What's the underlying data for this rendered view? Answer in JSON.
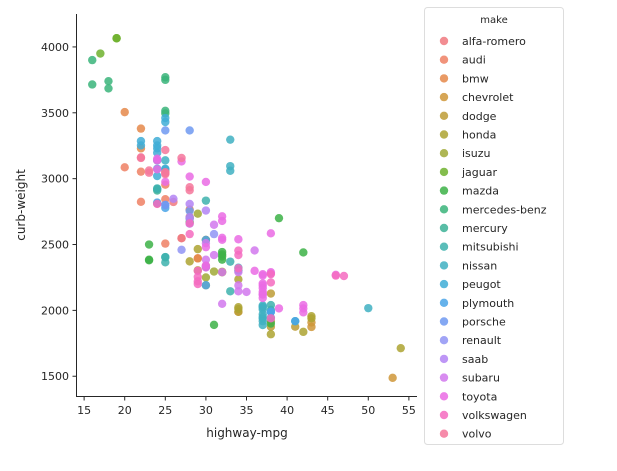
{
  "chart_data": {
    "type": "scatter",
    "xlabel": "highway-mpg",
    "ylabel": "curb-weight",
    "xlim": [
      14,
      56
    ],
    "ylim": [
      1350,
      4250
    ],
    "xticks": [
      15,
      20,
      25,
      30,
      35,
      40,
      45,
      50,
      55
    ],
    "yticks": [
      1500,
      2000,
      2500,
      3000,
      3500,
      4000
    ],
    "grid": false,
    "legend": {
      "title": "make",
      "placement": "right-outside"
    },
    "series": [
      {
        "name": "alfa-romero",
        "color": "#f0797f",
        "points": [
          [
            27,
            2548
          ],
          [
            27,
            2548
          ],
          [
            26,
            2823
          ]
        ]
      },
      {
        "name": "audi",
        "color": "#ee8064",
        "points": [
          [
            30,
            2337
          ],
          [
            22,
            2824
          ],
          [
            25,
            2507
          ],
          [
            25,
            2844
          ],
          [
            25,
            2954
          ],
          [
            20,
            3086
          ],
          [
            22,
            3053
          ]
        ]
      },
      {
        "name": "bmw",
        "color": "#e5884a",
        "points": [
          [
            29,
            2395
          ],
          [
            29,
            2395
          ],
          [
            28,
            2710
          ],
          [
            28,
            2765
          ],
          [
            25,
            3055
          ],
          [
            22,
            3230
          ],
          [
            22,
            3380
          ],
          [
            20,
            3505
          ]
        ]
      },
      {
        "name": "chevrolet",
        "color": "#cf9638",
        "points": [
          [
            53,
            1488
          ],
          [
            43,
            1874
          ],
          [
            43,
            1909
          ]
        ]
      },
      {
        "name": "dodge",
        "color": "#bd9c36",
        "points": [
          [
            41,
            1876
          ],
          [
            38,
            1876
          ],
          [
            38,
            2128
          ],
          [
            30,
            2191
          ],
          [
            30,
            2535
          ],
          [
            30,
            2535
          ],
          [
            24,
            2811
          ],
          [
            38,
            1918
          ],
          [
            34,
            1989
          ],
          [
            34,
            1989
          ]
        ]
      },
      {
        "name": "honda",
        "color": "#ada331",
        "points": [
          [
            54,
            1713
          ],
          [
            38,
            1819
          ],
          [
            42,
            1837
          ],
          [
            43,
            1940
          ],
          [
            43,
            1956
          ],
          [
            34,
            2010
          ],
          [
            34,
            2024
          ],
          [
            34,
            2236
          ],
          [
            32,
            2289
          ],
          [
            29,
            2304
          ],
          [
            28,
            2372
          ],
          [
            29,
            2465
          ],
          [
            32,
            2293
          ]
        ]
      },
      {
        "name": "isuzu",
        "color": "#a0a936",
        "points": [
          [
            29,
            2734
          ],
          [
            31,
            2295
          ],
          [
            30,
            2250
          ]
        ]
      },
      {
        "name": "jaguar",
        "color": "#6fb22e",
        "points": [
          [
            19,
            4066
          ],
          [
            19,
            4066
          ],
          [
            17,
            3950
          ]
        ]
      },
      {
        "name": "mazda",
        "color": "#3cb147",
        "points": [
          [
            31,
            1890
          ],
          [
            38,
            1900
          ],
          [
            39,
            2700
          ],
          [
            42,
            2440
          ],
          [
            32,
            2385
          ],
          [
            32,
            2410
          ],
          [
            32,
            2443
          ],
          [
            32,
            2425
          ],
          [
            23,
            2385
          ],
          [
            23,
            2500
          ],
          [
            23,
            2380
          ],
          [
            28,
            2670
          ],
          [
            28,
            2700
          ]
        ]
      },
      {
        "name": "mercedes-benz",
        "color": "#3ab47a",
        "points": [
          [
            25,
            3515
          ],
          [
            25,
            3750
          ],
          [
            25,
            3495
          ],
          [
            25,
            3770
          ],
          [
            18,
            3740
          ],
          [
            18,
            3685
          ],
          [
            16,
            3900
          ],
          [
            16,
            3715
          ]
        ]
      },
      {
        "name": "mercury",
        "color": "#3cb296",
        "points": [
          [
            24,
            2910
          ]
        ]
      },
      {
        "name": "mitsubishi",
        "color": "#3db2ad",
        "points": [
          [
            41,
            1918
          ],
          [
            38,
            1944
          ],
          [
            38,
            2004
          ],
          [
            33,
            2145
          ],
          [
            33,
            2370
          ],
          [
            30,
            2328
          ],
          [
            30,
            2833
          ],
          [
            24,
            2921
          ],
          [
            24,
            2926
          ],
          [
            25,
            2365
          ],
          [
            25,
            2405
          ],
          [
            25,
            2403
          ],
          [
            38,
            2040
          ]
        ]
      },
      {
        "name": "nissan",
        "color": "#3fb0c2",
        "points": [
          [
            37,
            1889
          ],
          [
            50,
            2017
          ],
          [
            37,
            1918
          ],
          [
            37,
            1938
          ],
          [
            37,
            2024
          ],
          [
            37,
            1951
          ],
          [
            37,
            2028
          ],
          [
            37,
            1971
          ],
          [
            37,
            2037
          ],
          [
            37,
            2008
          ],
          [
            34,
            2324
          ],
          [
            34,
            2302
          ],
          [
            33,
            3095
          ],
          [
            33,
            3296
          ],
          [
            33,
            3060
          ],
          [
            25,
            3071
          ],
          [
            25,
            3139
          ],
          [
            24,
            3139
          ]
        ]
      },
      {
        "name": "peugot",
        "color": "#40add6",
        "points": [
          [
            24,
            3020
          ],
          [
            24,
            3197
          ],
          [
            24,
            3230
          ],
          [
            22,
            3285
          ],
          [
            25,
            3075
          ],
          [
            22,
            3252
          ],
          [
            24,
            3075
          ],
          [
            24,
            3285
          ],
          [
            25,
            3460
          ],
          [
            24,
            3252
          ],
          [
            25,
            3430
          ]
        ]
      },
      {
        "name": "plymouth",
        "color": "#4aa5e8",
        "points": [
          [
            41,
            1918
          ],
          [
            38,
            1989
          ],
          [
            38,
            1989
          ],
          [
            30,
            2191
          ],
          [
            30,
            2535
          ],
          [
            24,
            2818
          ],
          [
            25,
            2778
          ]
        ]
      },
      {
        "name": "porsche",
        "color": "#6e99f1",
        "points": [
          [
            28,
            3366
          ],
          [
            28,
            2756
          ],
          [
            25,
            2800
          ],
          [
            25,
            2800
          ],
          [
            25,
            3366
          ]
        ]
      },
      {
        "name": "renault",
        "color": "#9194f4",
        "points": [
          [
            31,
            2579
          ],
          [
            27,
            2460
          ]
        ]
      },
      {
        "name": "saab",
        "color": "#b384f4",
        "points": [
          [
            28,
            2658
          ],
          [
            28,
            2695
          ],
          [
            28,
            2707
          ],
          [
            30,
            2758
          ],
          [
            28,
            2808
          ],
          [
            26,
            2847
          ]
        ]
      },
      {
        "name": "subaru",
        "color": "#d178ed",
        "points": [
          [
            32,
            2050
          ],
          [
            37,
            2120
          ],
          [
            34,
            2145
          ],
          [
            34,
            2190
          ],
          [
            32,
            2290
          ],
          [
            35,
            2140
          ],
          [
            30,
            2385
          ],
          [
            30,
            2510
          ],
          [
            34,
            2290
          ],
          [
            36,
            2455
          ],
          [
            31,
            2420
          ],
          [
            31,
            2650
          ]
        ]
      },
      {
        "name": "toyota",
        "color": "#ea6be4",
        "points": [
          [
            46,
            2270
          ],
          [
            42,
            1985
          ],
          [
            42,
            2040
          ],
          [
            42,
            2015
          ],
          [
            38,
            2280
          ],
          [
            38,
            2290
          ],
          [
            37,
            2275
          ],
          [
            37,
            2094
          ],
          [
            37,
            2122
          ],
          [
            37,
            2140
          ],
          [
            37,
            2169
          ],
          [
            37,
            2204
          ],
          [
            37,
            2265
          ],
          [
            36,
            2300
          ],
          [
            34,
            2540
          ],
          [
            32,
            2536
          ],
          [
            32,
            2551
          ],
          [
            32,
            2679
          ],
          [
            32,
            2714
          ],
          [
            30,
            2975
          ],
          [
            30,
            2326
          ],
          [
            30,
            2480
          ],
          [
            28,
            3016
          ],
          [
            27,
            3131
          ],
          [
            25,
            2976
          ],
          [
            24,
            3071
          ],
          [
            24,
            3139
          ],
          [
            24,
            3151
          ],
          [
            38,
            2585
          ],
          [
            39,
            2015
          ],
          [
            37,
            2190
          ],
          [
            30,
            2340
          ]
        ]
      },
      {
        "name": "volkswagen",
        "color": "#f56bc0",
        "points": [
          [
            47,
            2261
          ],
          [
            46,
            2264
          ],
          [
            38,
            2212
          ],
          [
            38,
            2275
          ],
          [
            34,
            2319
          ],
          [
            29,
            2300
          ],
          [
            29,
            2254
          ],
          [
            29,
            2221
          ],
          [
            28,
            2661
          ],
          [
            28,
            2579
          ],
          [
            24,
            2808
          ],
          [
            38,
            1940
          ],
          [
            29,
            2200
          ],
          [
            34,
            2454
          ],
          [
            34,
            2420
          ]
        ]
      },
      {
        "name": "volvo",
        "color": "#f4779b",
        "points": [
          [
            28,
            2912
          ],
          [
            25,
            3034
          ],
          [
            28,
            2935
          ],
          [
            25,
            3042
          ],
          [
            23,
            3045
          ],
          [
            27,
            3157
          ],
          [
            25,
            3217
          ],
          [
            23,
            3062
          ],
          [
            22,
            3162
          ],
          [
            25,
            3049
          ],
          [
            22,
            3157
          ]
        ]
      }
    ]
  }
}
